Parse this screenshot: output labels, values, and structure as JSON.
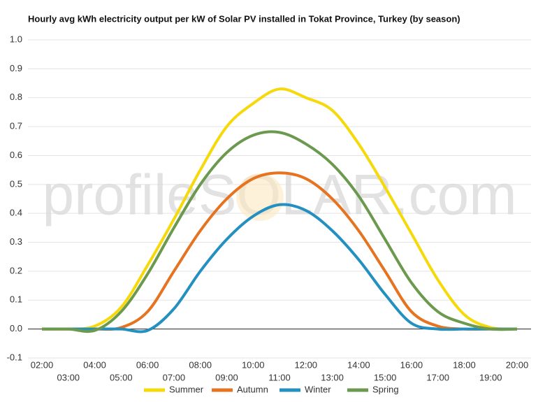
{
  "chart_data": {
    "type": "line",
    "title": "Hourly avg kWh electricity output per kW of Solar PV installed in Tokat Province, Turkey (by season)",
    "watermark": "profileSOLAR.com",
    "categories": [
      "02:00",
      "03:00",
      "04:00",
      "05:00",
      "06:00",
      "07:00",
      "08:00",
      "09:00",
      "10:00",
      "11:00",
      "12:00",
      "13:00",
      "14:00",
      "15:00",
      "16:00",
      "17:00",
      "18:00",
      "19:00",
      "20:00"
    ],
    "series": [
      {
        "name": "Summer",
        "color": "#f5d90a",
        "values": [
          0,
          0,
          0.01,
          0.075,
          0.22,
          0.38,
          0.55,
          0.7,
          0.78,
          0.83,
          0.8,
          0.756,
          0.64,
          0.49,
          0.33,
          0.17,
          0.05,
          0.005,
          0
        ]
      },
      {
        "name": "Autumn",
        "color": "#e5731f",
        "values": [
          0,
          0,
          0,
          0.005,
          0.06,
          0.2,
          0.34,
          0.45,
          0.52,
          0.54,
          0.52,
          0.45,
          0.34,
          0.2,
          0.06,
          0.01,
          0,
          0,
          0
        ]
      },
      {
        "name": "Winter",
        "color": "#2490c0",
        "values": [
          0,
          0,
          0,
          0,
          -0.005,
          0.07,
          0.2,
          0.31,
          0.39,
          0.43,
          0.41,
          0.34,
          0.24,
          0.12,
          0.02,
          0,
          0,
          0,
          0
        ]
      },
      {
        "name": "Spring",
        "color": "#6b9a4e",
        "values": [
          0,
          0,
          -0.005,
          0.06,
          0.19,
          0.35,
          0.5,
          0.61,
          0.67,
          0.68,
          0.64,
          0.57,
          0.46,
          0.31,
          0.16,
          0.06,
          0.02,
          0,
          0
        ]
      }
    ],
    "ylim": [
      -0.1,
      1.0
    ],
    "yticks": [
      {
        "value": -0.1,
        "label": "-0.1"
      },
      {
        "value": 0,
        "label": "0.0"
      },
      0.1,
      0.2,
      0.3,
      0.4,
      0.5,
      0.6,
      0.7,
      0.8,
      0.9,
      {
        "value": 1.0,
        "label": "1.0"
      }
    ],
    "grid": true,
    "legend": "bottom"
  }
}
